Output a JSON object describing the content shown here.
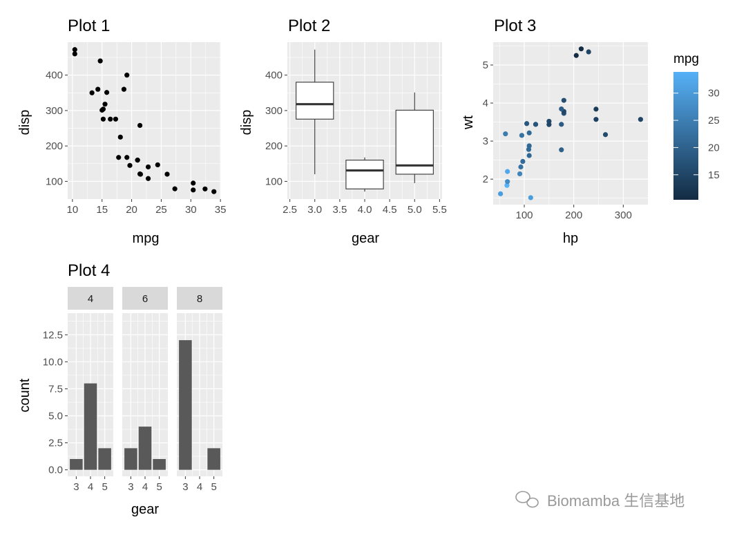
{
  "chart_data": [
    {
      "type": "scatter",
      "title": "Plot 1",
      "xlabel": "mpg",
      "ylabel": "disp",
      "xlim": [
        9.2,
        35.1
      ],
      "ylim": [
        50,
        493
      ],
      "xticks": [
        10,
        15,
        20,
        25,
        30,
        35
      ],
      "yticks": [
        100,
        200,
        300,
        400
      ],
      "point_color": "#000000",
      "points": [
        [
          21.0,
          160
        ],
        [
          21.0,
          160
        ],
        [
          22.8,
          108
        ],
        [
          21.4,
          258
        ],
        [
          18.7,
          360
        ],
        [
          18.1,
          225
        ],
        [
          14.3,
          360
        ],
        [
          24.4,
          146.7
        ],
        [
          22.8,
          140.8
        ],
        [
          19.2,
          167.6
        ],
        [
          17.8,
          167.6
        ],
        [
          16.4,
          275.8
        ],
        [
          17.3,
          275.8
        ],
        [
          15.2,
          275.8
        ],
        [
          10.4,
          472
        ],
        [
          10.4,
          460
        ],
        [
          14.7,
          440
        ],
        [
          32.4,
          78.7
        ],
        [
          30.4,
          75.7
        ],
        [
          33.9,
          71.1
        ],
        [
          21.5,
          120.1
        ],
        [
          15.5,
          318
        ],
        [
          15.2,
          304
        ],
        [
          13.3,
          350
        ],
        [
          19.2,
          400
        ],
        [
          27.3,
          79
        ],
        [
          26.0,
          120.3
        ],
        [
          30.4,
          95.1
        ],
        [
          15.8,
          351
        ],
        [
          19.7,
          145
        ],
        [
          15.0,
          301
        ],
        [
          21.4,
          121
        ]
      ]
    },
    {
      "type": "boxplot",
      "title": "Plot 2",
      "xlabel": "gear",
      "ylabel": "disp",
      "xlim": [
        2.45,
        5.55
      ],
      "ylim": [
        50,
        493
      ],
      "xticks": [
        "2.5",
        "3.0",
        "3.5",
        "4.0",
        "4.5",
        "5.0",
        "5.5"
      ],
      "yticks": [
        100,
        200,
        300,
        400
      ],
      "boxes": [
        {
          "x": 3,
          "min": 120.1,
          "q1": 275.8,
          "median": 318,
          "q3": 380,
          "max": 472
        },
        {
          "x": 4,
          "min": 71.1,
          "q1": 78.8,
          "median": 130.9,
          "q3": 160,
          "max": 167.6
        },
        {
          "x": 5,
          "min": 95.1,
          "q1": 120.3,
          "median": 145,
          "q3": 301,
          "max": 351
        }
      ]
    },
    {
      "type": "scatter",
      "title": "Plot 3",
      "xlabel": "hp",
      "ylabel": "wt",
      "xlim": [
        37.2,
        349.8
      ],
      "ylim": [
        1.33,
        5.6
      ],
      "xticks": [
        100,
        200,
        300
      ],
      "yticks": [
        2,
        3,
        4,
        5
      ],
      "color_by": "mpg",
      "legend": {
        "title": "mpg",
        "ticks": [
          15,
          20,
          25,
          30
        ],
        "range": [
          10.4,
          33.9
        ],
        "low_color": "#132B43",
        "high_color": "#56B1F7"
      },
      "points": [
        [
          110,
          2.62,
          21.0
        ],
        [
          110,
          2.875,
          21.0
        ],
        [
          93,
          2.32,
          22.8
        ],
        [
          110,
          3.215,
          21.4
        ],
        [
          175,
          3.44,
          18.7
        ],
        [
          105,
          3.46,
          18.1
        ],
        [
          245,
          3.57,
          14.3
        ],
        [
          62,
          3.19,
          24.4
        ],
        [
          95,
          3.15,
          22.8
        ],
        [
          123,
          3.44,
          19.2
        ],
        [
          123,
          3.44,
          17.8
        ],
        [
          180,
          4.07,
          16.4
        ],
        [
          180,
          3.73,
          17.3
        ],
        [
          180,
          3.78,
          15.2
        ],
        [
          205,
          5.25,
          10.4
        ],
        [
          215,
          5.424,
          10.4
        ],
        [
          230,
          5.345,
          14.7
        ],
        [
          66,
          2.2,
          32.4
        ],
        [
          52,
          1.615,
          30.4
        ],
        [
          65,
          1.835,
          33.9
        ],
        [
          97,
          2.465,
          21.5
        ],
        [
          150,
          3.52,
          15.5
        ],
        [
          150,
          3.435,
          15.2
        ],
        [
          245,
          3.84,
          13.3
        ],
        [
          175,
          3.845,
          19.2
        ],
        [
          66,
          1.935,
          27.3
        ],
        [
          91,
          2.14,
          26.0
        ],
        [
          113,
          1.513,
          30.4
        ],
        [
          264,
          3.17,
          15.8
        ],
        [
          175,
          2.77,
          19.7
        ],
        [
          335,
          3.57,
          15.0
        ],
        [
          109,
          2.78,
          21.4
        ]
      ]
    },
    {
      "type": "bar",
      "title": "Plot 4",
      "xlabel": "gear",
      "ylabel": "count",
      "ylim": [
        -0.6,
        14.5
      ],
      "yticks": [
        "0.0",
        "2.5",
        "5.0",
        "7.5",
        "10.0",
        "12.5"
      ],
      "categories": [
        "3",
        "4",
        "5"
      ],
      "bar_color": "#595959",
      "facets": [
        {
          "label": "4",
          "values": [
            1,
            8,
            2
          ]
        },
        {
          "label": "6",
          "values": [
            2,
            4,
            1
          ]
        },
        {
          "label": "8",
          "values": [
            12,
            0,
            2
          ]
        }
      ]
    }
  ],
  "watermark": "Biomamba 生信基地",
  "colors": {
    "panel": "#EBEBEB",
    "grid": "#FFFFFF",
    "strip": "#D9D9D9",
    "box_fill": "#FFFFFF",
    "line": "#333333"
  }
}
